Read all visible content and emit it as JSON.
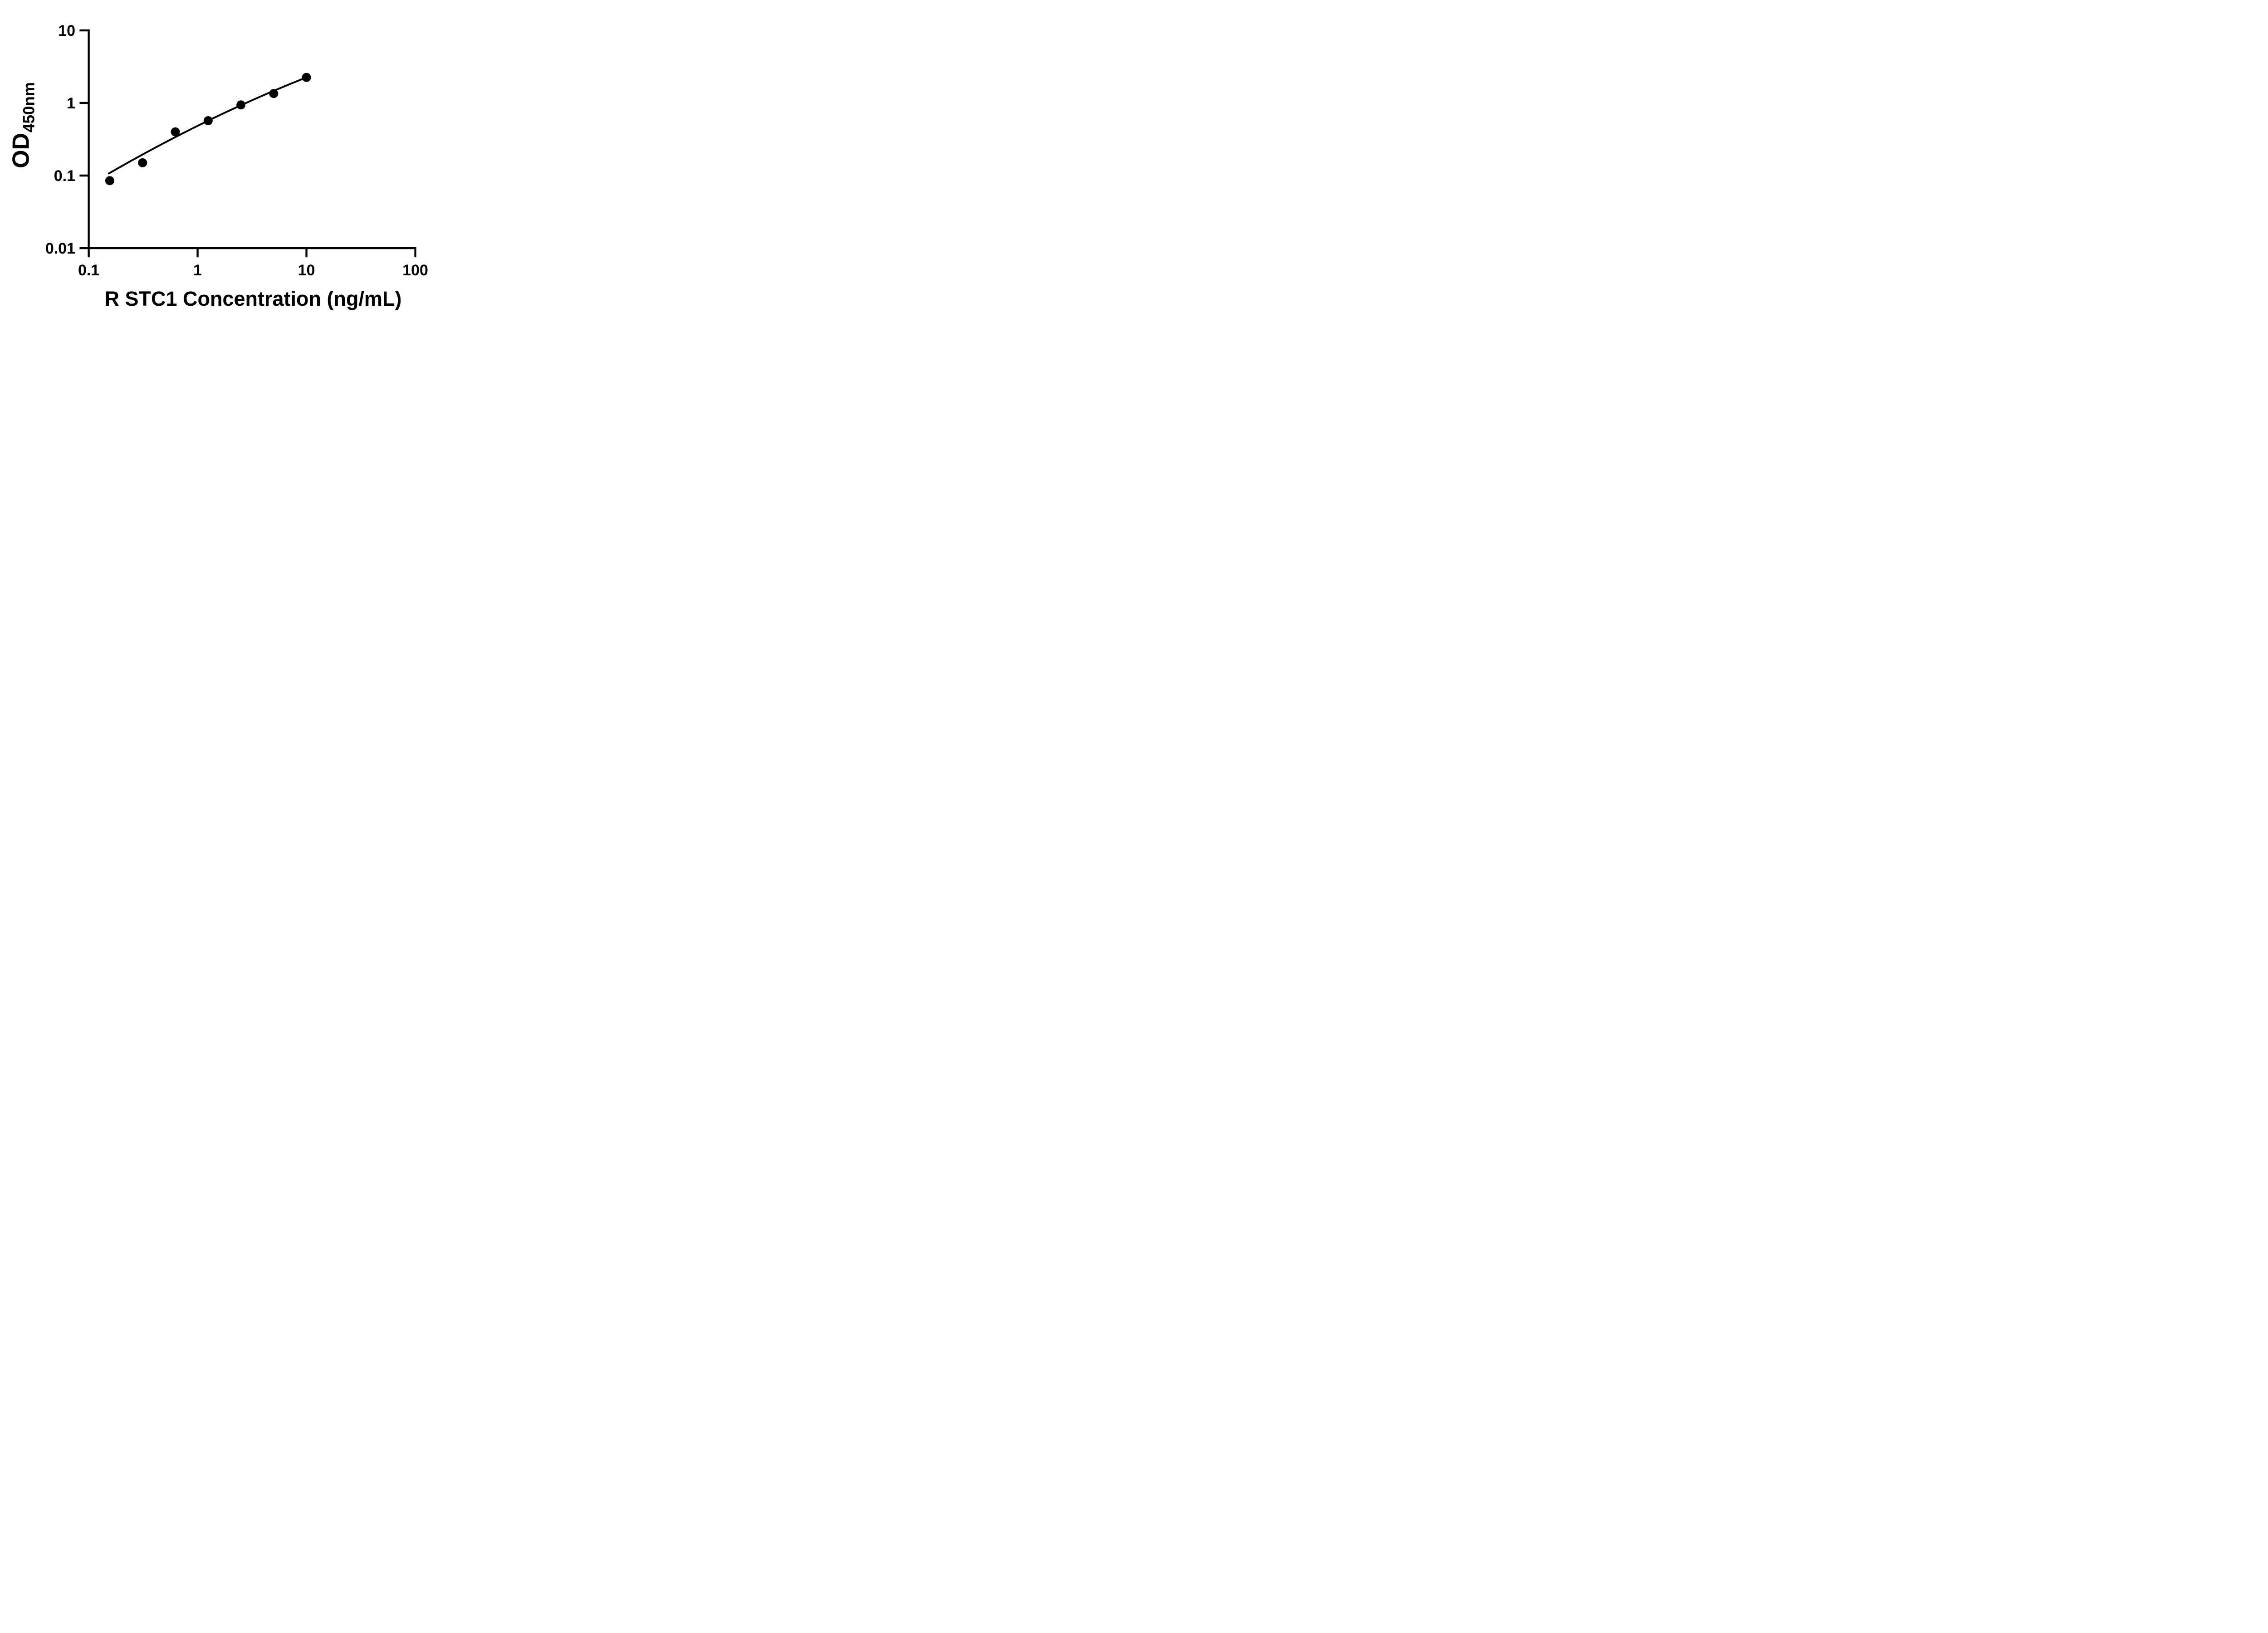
{
  "figure": {
    "background": "#ffffff",
    "description": "ELISA standard curve, log-log scatter plot with fitted line"
  },
  "chart_data": {
    "type": "scatter",
    "title": "",
    "xlabel": "R STC1 Concentration (ng/mL)",
    "ylabel_main": "OD",
    "ylabel_sub": "450nm",
    "x_scale": "log10",
    "y_scale": "log10",
    "xlim": [
      0.1,
      100
    ],
    "ylim": [
      0.01,
      10
    ],
    "x_ticks": [
      {
        "value": 0.1,
        "label": "0.1"
      },
      {
        "value": 1,
        "label": "1"
      },
      {
        "value": 10,
        "label": "10"
      },
      {
        "value": 100,
        "label": "100"
      }
    ],
    "y_ticks": [
      {
        "value": 10,
        "label": "10"
      },
      {
        "value": 1,
        "label": "1"
      },
      {
        "value": 0.1,
        "label": "0.1"
      },
      {
        "value": 0.01,
        "label": "0.01"
      }
    ],
    "series": [
      {
        "name": "standard-curve-points",
        "marker": "filled-circle",
        "points": [
          {
            "x": 0.156,
            "y": 0.085
          },
          {
            "x": 0.3125,
            "y": 0.15
          },
          {
            "x": 0.625,
            "y": 0.4
          },
          {
            "x": 1.25,
            "y": 0.57
          },
          {
            "x": 2.5,
            "y": 0.94
          },
          {
            "x": 5,
            "y": 1.35
          },
          {
            "x": 10,
            "y": 2.25
          }
        ]
      }
    ],
    "fit_curve": {
      "model": "log10(OD) = a + b*u + c*u^2 where u = log10(concentration)",
      "a": -0.3155,
      "b": 0.743,
      "c": -0.0755,
      "x_start": 0.153,
      "x_end": 10
    },
    "colors": {
      "foreground": "#000000",
      "background": "#ffffff"
    },
    "grid": false,
    "legend": false
  }
}
